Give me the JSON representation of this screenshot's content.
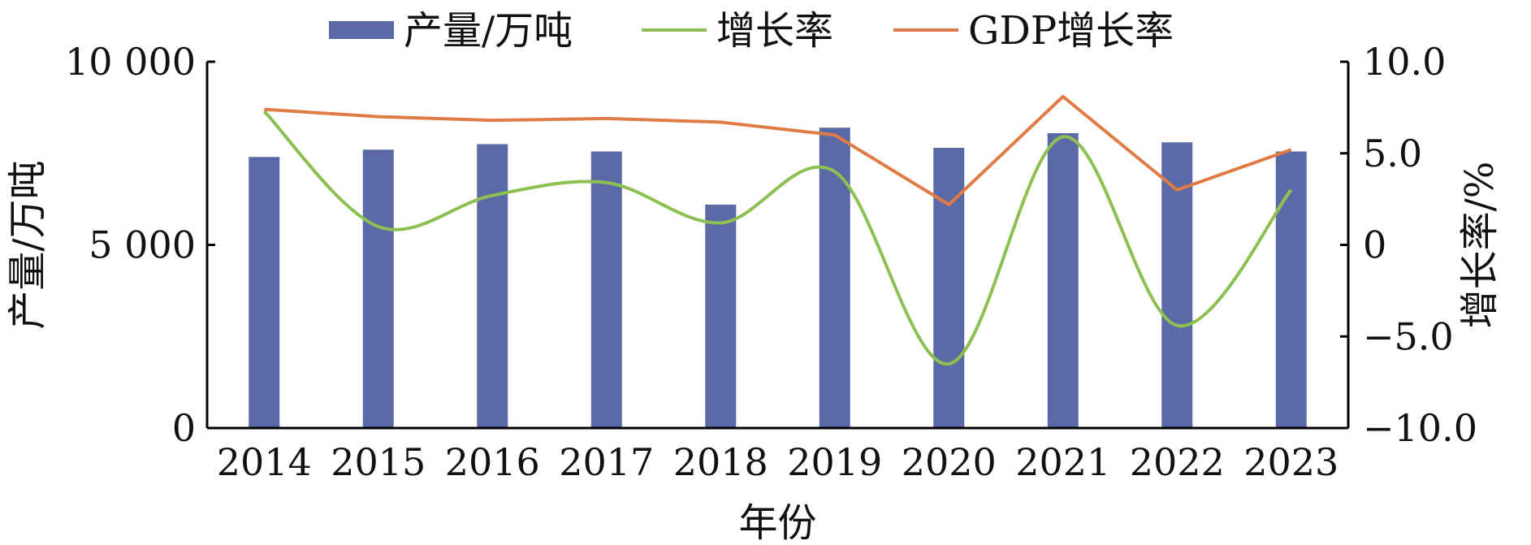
{
  "chart_data": {
    "type": "bar",
    "categories": [
      "2014",
      "2015",
      "2016",
      "2017",
      "2018",
      "2019",
      "2020",
      "2021",
      "2022",
      "2023"
    ],
    "series": [
      {
        "name": "产量/万吨",
        "type": "bar",
        "axis": "left",
        "color": "#5b6aa6",
        "values": [
          7400,
          7600,
          7750,
          7550,
          6100,
          8200,
          7650,
          8050,
          7800,
          7550
        ]
      },
      {
        "name": "增长率",
        "type": "line",
        "axis": "right",
        "color": "#8cc152",
        "values": [
          7.3,
          1.0,
          2.7,
          3.4,
          1.2,
          4.0,
          -6.5,
          5.9,
          -4.4,
          3.0
        ]
      },
      {
        "name": "GDP增长率",
        "type": "line",
        "axis": "right",
        "color": "#e07b45",
        "values": [
          7.4,
          7.0,
          6.8,
          6.9,
          6.7,
          6.0,
          2.2,
          8.1,
          3.0,
          5.2
        ]
      }
    ],
    "left_axis": {
      "label": "产量/万吨",
      "ylim": [
        0,
        10000
      ],
      "ticks": [
        0,
        5000,
        10000
      ],
      "tick_labels": [
        "0",
        "5 000",
        "10 000"
      ]
    },
    "right_axis": {
      "label": "增长率/%",
      "ylim": [
        -10,
        10
      ],
      "ticks": [
        -10,
        -5,
        0,
        5,
        10
      ],
      "tick_labels": [
        "−10.0",
        "−5.0",
        "0",
        "5.0",
        "10.0"
      ]
    },
    "xlabel": "年份",
    "legend_position": "top",
    "grid": false
  }
}
